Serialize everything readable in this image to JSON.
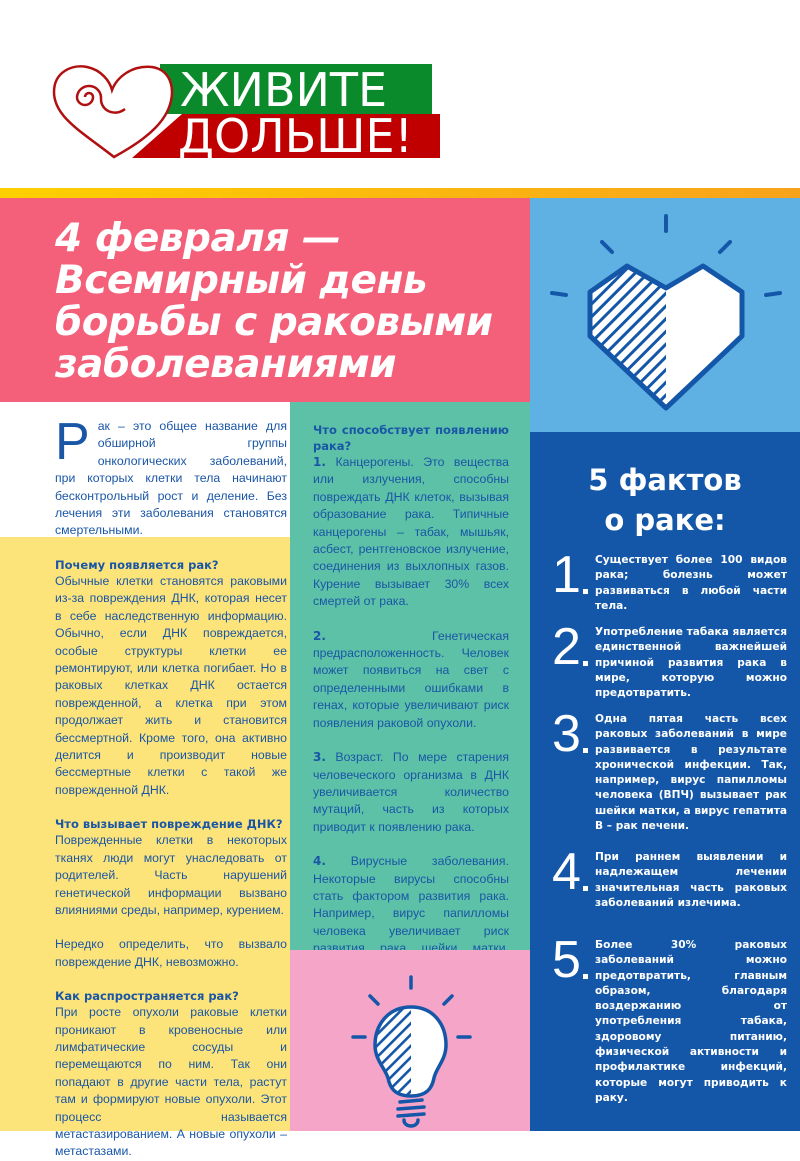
{
  "logo": {
    "line1": "ЖИВИТЕ",
    "line2": "ДОЛЬШЕ!",
    "colors": {
      "green": "#0a8a2a",
      "red": "#c00000"
    }
  },
  "title": [
    "4 февраля —",
    "Всемирный день",
    "борьбы с раковыми",
    "заболеваниями"
  ],
  "intro": {
    "dropcap": "Р",
    "text": "ак – это общее название для обширной группы онкологических заболеваний, при которых клетки тела начинают бесконтрольный рост и деление. Без лечения эти заболевания становятся смертельными."
  },
  "why": {
    "heading": "Почему появляется рак?",
    "text": "Обычные клетки становятся раковыми из-за повреждения ДНК, которая несет в себе наследственную информацию. Обычно, если ДНК повреждается, особые структуры клетки ее ремонтируют, или клетка погибает. Но в раковых клетках ДНК остается поврежденной, а клетка при этом продолжает жить и становится бессмертной. Кроме того, она активно делится и производит новые бессмертные клетки с такой же поврежденной ДНК."
  },
  "damage": {
    "heading": "Что вызывает повреждение ДНК?",
    "text": "Поврежденные клетки в некоторых тканях люди могут унаследовать от родителей. Часть нарушений генетической информации вызвано влияниями среды, например, курением.",
    "text2": "Нередко определить, что вызвало повреждение ДНК, невозможно."
  },
  "spread": {
    "heading": "Как распространяется рак?",
    "text": "При росте опухоли раковые клетки проникают в кровеносные или лимфатические сосуды и перемещаются по ним. Так они попадают в другие части тела, растут там и формируют новые опухоли. Этот процесс называется метастазированием. А новые опухоли – метастазами."
  },
  "causes": {
    "heading": "Что способствует появлению рака?",
    "items": [
      {
        "num": "1.",
        "text": "Канцерогены. Это вещества или излучения, способны повреждать ДНК клеток, вызывая образование рака. Типичные канцерогены – табак, мышьяк, асбест, рентгеновское излучение, соединения из выхлопных газов. Курение вызывает 30% всех смертей от рака."
      },
      {
        "num": "2.",
        "text": "Генетическая предрасположенность. Человек может появиться на свет с определенными ошибками в генах, которые увеличивают риск появления раковой опухоли."
      },
      {
        "num": "3.",
        "text": "Возраст. По мере старения человеческого организма в ДНК увеличивается количество мутаций, часть из которых приводит к появлению рака."
      },
      {
        "num": "4.",
        "text": "Вирусные заболевания. Некоторые вирусы способны стать фактором развития рака. Например, вирус папилломы человека увеличивает риск развития рака шейки матки. Вирус гепатита B и C провоцирует рак печени. А вирус иммунодефицита человека (ВИЧ) ослабляет иммунитет и увеличивает вероятность развития рака."
      }
    ]
  },
  "facts": {
    "title1": "5 фактов",
    "title2": "о раке:",
    "items": [
      {
        "num": "1",
        "text": "Существует более 100 видов рака; болезнь может развиваться в любой части тела."
      },
      {
        "num": "2",
        "text": "Употребление табака является единственной важнейшей причиной развития рака в мире, которую можно предотвратить."
      },
      {
        "num": "3",
        "text": "Одна пятая часть всех раковых заболеваний в мире развивается в результате хронической инфекции. Так, например, вирус папилломы человека (ВПЧ) вызывает рак шейки матки, а вирус гепатита B – рак печени."
      },
      {
        "num": "4",
        "text": "При раннем выявлении и надлежащем лечении значительная часть раковых заболеваний излечима."
      },
      {
        "num": "5",
        "text": "Более 30% раковых заболеваний можно предотвратить, главным образом, благодаря воздержанию от употребления табака, здоровому питанию, физической активности и профилактике инфекций, которые могут приводить к раку."
      }
    ]
  },
  "icons": {
    "heart": "striped-heart-icon",
    "bulb": "striped-lightbulb-icon"
  },
  "colors": {
    "pink": "#f4607a",
    "light_blue": "#5fb0e3",
    "dark_blue": "#1457a8",
    "yellow": "#fde47a",
    "teal": "#5cc1a7",
    "light_pink": "#f4a5c8",
    "text": "#1a56a6"
  }
}
